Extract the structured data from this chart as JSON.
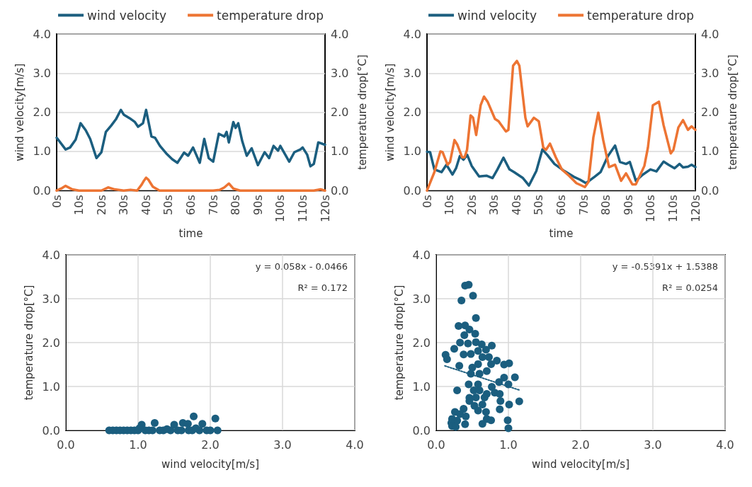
{
  "chart_data": [
    {
      "type": "line",
      "xlabel": "time",
      "ylabel": "wind velocity[m/s]",
      "y2label": "temperature drop[°C]",
      "legend": "top",
      "grid": "y",
      "marker": "none",
      "xlim": [
        0,
        120
      ],
      "xticks": [
        {
          "value": 0,
          "label": "0s"
        },
        {
          "value": 10,
          "label": "10s"
        },
        {
          "value": 20,
          "label": "20s"
        },
        {
          "value": 30,
          "label": "30s"
        },
        {
          "value": 40,
          "label": "40s"
        },
        {
          "value": 50,
          "label": "50s"
        },
        {
          "value": 60,
          "label": "60s"
        },
        {
          "value": 70,
          "label": "70s"
        },
        {
          "value": 80,
          "label": "80s"
        },
        {
          "value": 90,
          "label": "90s"
        },
        {
          "value": 100,
          "label": "100s"
        },
        {
          "value": 110,
          "label": "110s"
        },
        {
          "value": 120,
          "label": "120s"
        }
      ],
      "ylim": [
        0,
        4
      ],
      "yticks": [
        {
          "value": 0,
          "label": "0.0"
        },
        {
          "value": 1,
          "label": "1.0"
        },
        {
          "value": 2,
          "label": "2.0"
        },
        {
          "value": 3,
          "label": "3.0"
        },
        {
          "value": 4,
          "label": "4.0"
        }
      ],
      "y2lim": [
        0,
        4
      ],
      "y2ticks": [
        {
          "value": 0,
          "label": "0.0"
        },
        {
          "value": 1,
          "label": "1.0"
        },
        {
          "value": 2,
          "label": "2.0"
        },
        {
          "value": 3,
          "label": "3.0"
        },
        {
          "value": 4,
          "label": "4.0"
        }
      ],
      "series": [
        {
          "name": "wind velocity",
          "color": "#1b5e7f",
          "x": [
            0,
            4,
            6,
            8.5,
            10.7,
            13,
            15,
            17.8,
            20,
            22,
            24.4,
            26.5,
            28.7,
            30,
            32.6,
            35,
            36.4,
            38.6,
            40,
            42.4,
            44,
            46.2,
            49,
            51.7,
            54,
            57,
            58.8,
            61,
            64,
            66,
            68,
            70,
            72.5,
            75,
            76,
            77,
            79,
            80,
            81.2,
            83,
            85,
            87.2,
            90,
            93,
            95,
            97,
            99,
            100,
            104,
            106.3,
            109,
            110,
            112,
            113.5,
            115,
            117,
            120
          ],
          "values": [
            1.35,
            1.05,
            1.1,
            1.3,
            1.72,
            1.54,
            1.32,
            0.83,
            0.98,
            1.5,
            1.66,
            1.82,
            2.06,
            1.94,
            1.85,
            1.75,
            1.63,
            1.72,
            2.06,
            1.38,
            1.35,
            1.14,
            0.95,
            0.8,
            0.71,
            0.97,
            0.89,
            1.1,
            0.71,
            1.32,
            0.83,
            0.74,
            1.45,
            1.38,
            1.5,
            1.23,
            1.75,
            1.6,
            1.72,
            1.26,
            0.89,
            1.08,
            0.65,
            0.98,
            0.83,
            1.14,
            1.02,
            1.14,
            0.74,
            0.98,
            1.05,
            1.1,
            0.92,
            0.62,
            0.68,
            1.23,
            1.17
          ]
        },
        {
          "name": "temperature drop",
          "color": "#ed7433",
          "axis": "y2",
          "x": [
            0,
            2,
            4,
            7,
            10,
            20,
            23,
            26,
            30,
            33,
            36,
            38,
            39,
            40,
            41,
            43,
            46,
            60,
            70,
            73,
            75,
            77,
            79,
            82,
            100,
            115,
            118,
            120
          ],
          "values": [
            0,
            0.05,
            0.12,
            0.03,
            0,
            0,
            0.08,
            0.03,
            0,
            0.02,
            0,
            0.15,
            0.25,
            0.33,
            0.28,
            0.1,
            0,
            0,
            0,
            0.02,
            0.08,
            0.18,
            0.05,
            0,
            0,
            0,
            0.03,
            0
          ]
        }
      ]
    },
    {
      "type": "line",
      "xlabel": "time",
      "ylabel": "wind velocity[m/s]",
      "y2label": "temperature drop[°C]",
      "legend": "top",
      "grid": "y",
      "marker": "none",
      "xlim": [
        0,
        120
      ],
      "xticks": [
        {
          "value": 0,
          "label": "0s"
        },
        {
          "value": 10,
          "label": "10s"
        },
        {
          "value": 20,
          "label": "20s"
        },
        {
          "value": 30,
          "label": "30s"
        },
        {
          "value": 40,
          "label": "40s"
        },
        {
          "value": 50,
          "label": "50s"
        },
        {
          "value": 60,
          "label": "60s"
        },
        {
          "value": 70,
          "label": "70s"
        },
        {
          "value": 80,
          "label": "80s"
        },
        {
          "value": 90,
          "label": "90s"
        },
        {
          "value": 100,
          "label": "100s"
        },
        {
          "value": 110,
          "label": "110s"
        },
        {
          "value": 120,
          "label": "120s"
        }
      ],
      "ylim": [
        0,
        4
      ],
      "yticks": [
        {
          "value": 0,
          "label": "0.0"
        },
        {
          "value": 1,
          "label": "1.0"
        },
        {
          "value": 2,
          "label": "2.0"
        },
        {
          "value": 3,
          "label": "3.0"
        },
        {
          "value": 4,
          "label": "4.0"
        }
      ],
      "y2lim": [
        0,
        4
      ],
      "y2ticks": [
        {
          "value": 0,
          "label": "0.0"
        },
        {
          "value": 1,
          "label": "1.0"
        },
        {
          "value": 2,
          "label": "2.0"
        },
        {
          "value": 3,
          "label": "3.0"
        },
        {
          "value": 4,
          "label": "4.0"
        }
      ],
      "series": [
        {
          "name": "wind velocity",
          "color": "#1b5e7f",
          "x": [
            0,
            1.4,
            3.3,
            6.5,
            8.7,
            11.4,
            13,
            14.7,
            16.3,
            18,
            20,
            23.3,
            26.6,
            29.3,
            31.5,
            34.2,
            36.9,
            39,
            42.9,
            45.6,
            48.9,
            51.6,
            53.8,
            57,
            61.4,
            65.7,
            68.4,
            71.1,
            74.9,
            77.6,
            80.9,
            84.1,
            86.3,
            89,
            90.7,
            93.4,
            96.6,
            99.9,
            102.6,
            105.8,
            108,
            110.7,
            112.9,
            114.5,
            116.7,
            118.3,
            120
          ],
          "values": [
            0.99,
            0.98,
            0.54,
            0.47,
            0.66,
            0.41,
            0.57,
            0.88,
            0.79,
            0.91,
            0.63,
            0.36,
            0.38,
            0.32,
            0.54,
            0.84,
            0.54,
            0.47,
            0.32,
            0.13,
            0.5,
            1.05,
            0.91,
            0.68,
            0.5,
            0.35,
            0.28,
            0.19,
            0.35,
            0.47,
            0.88,
            1.15,
            0.73,
            0.68,
            0.73,
            0.25,
            0.41,
            0.54,
            0.49,
            0.74,
            0.66,
            0.57,
            0.68,
            0.59,
            0.61,
            0.66,
            0.6
          ]
        },
        {
          "name": "temperature drop",
          "color": "#ed7433",
          "axis": "y2",
          "x": [
            0,
            3.3,
            6,
            7,
            9.2,
            10.3,
            12.3,
            13.6,
            15.7,
            16.8,
            17.9,
            19.5,
            20.6,
            22,
            24,
            25.5,
            27.1,
            30.4,
            32,
            35.3,
            36.4,
            38.5,
            40.2,
            41.3,
            44,
            45,
            47.8,
            50,
            52,
            53.2,
            55,
            57.6,
            60.3,
            63.5,
            66.8,
            70.6,
            72.2,
            74.4,
            76.6,
            78.8,
            81.4,
            84.1,
            86.8,
            89,
            91.8,
            93.4,
            97.2,
            98.8,
            101,
            103.7,
            105.8,
            109,
            110.2,
            112.4,
            114.5,
            116.7,
            118.3,
            120
          ],
          "values": [
            0,
            0.47,
            1.0,
            0.98,
            0.66,
            0.73,
            1.29,
            1.17,
            0.85,
            0.85,
            1.04,
            1.92,
            1.86,
            1.42,
            2.18,
            2.4,
            2.27,
            1.83,
            1.77,
            1.51,
            1.55,
            3.19,
            3.31,
            3.19,
            1.86,
            1.64,
            1.86,
            1.77,
            1.1,
            1.04,
            1.2,
            0.85,
            0.54,
            0.38,
            0.19,
            0.09,
            0.22,
            1.36,
            1.99,
            1.29,
            0.6,
            0.66,
            0.25,
            0.44,
            0.16,
            0.16,
            0.63,
            1.1,
            2.18,
            2.27,
            1.67,
            0.95,
            1.04,
            1.61,
            1.8,
            1.55,
            1.64,
            1.55
          ]
        }
      ]
    },
    {
      "type": "scatter",
      "xlabel": "wind velocity[m/s]",
      "ylabel": "temperature drop[°C]",
      "grid": true,
      "marker": "circle",
      "annotations": [
        "y = 0.058x - 0.0466",
        "R² = 0.172"
      ],
      "xlim": [
        0,
        4
      ],
      "xticks": [
        {
          "value": 0,
          "label": "0.0"
        },
        {
          "value": 1,
          "label": "1.0"
        },
        {
          "value": 2,
          "label": "2.0"
        },
        {
          "value": 3,
          "label": "3.0"
        },
        {
          "value": 4,
          "label": "4.0"
        }
      ],
      "ylim": [
        0,
        4
      ],
      "yticks": [
        {
          "value": 0,
          "label": "0.0"
        },
        {
          "value": 1,
          "label": "1.0"
        },
        {
          "value": 2,
          "label": "2.0"
        },
        {
          "value": 3,
          "label": "3.0"
        },
        {
          "value": 4,
          "label": "4.0"
        }
      ],
      "series": [
        {
          "color": "#1b5e7f",
          "x": [
            0.6,
            0.65,
            0.7,
            0.75,
            0.8,
            0.85,
            0.9,
            0.95,
            1.0,
            1.1,
            1.15,
            1.2,
            1.3,
            1.35,
            1.45,
            1.55,
            1.6,
            1.7,
            1.75,
            1.85,
            1.95,
            2.0,
            2.1,
            1.05,
            1.23,
            1.38,
            1.5,
            1.62,
            1.69,
            1.77,
            1.89,
            2.07,
            1.02,
            1.4,
            1.8
          ],
          "values": [
            0,
            0,
            0,
            0,
            0,
            0,
            0,
            0,
            0,
            0,
            0,
            0,
            0,
            0,
            0,
            0,
            0,
            0,
            0,
            0,
            0,
            0,
            0,
            0.13,
            0.17,
            null,
            0.13,
            0.17,
            0.15,
            0.32,
            0.15,
            0.27,
            0.05,
            0.03,
            0.05
          ]
        }
      ]
    },
    {
      "type": "scatter",
      "xlabel": "wind velocity[m/s]",
      "ylabel": "temperature drop[°C]",
      "grid": true,
      "marker": "circle",
      "annotations": [
        "y = -0.5391x + 1.5388",
        "R² = 0.0254"
      ],
      "xlim": [
        0,
        4
      ],
      "xticks": [
        {
          "value": 0,
          "label": "0.0"
        },
        {
          "value": 1,
          "label": "1.0"
        },
        {
          "value": 2,
          "label": "2.0"
        },
        {
          "value": 3,
          "label": "3.0"
        },
        {
          "value": 4,
          "label": "4.0"
        }
      ],
      "ylim": [
        0,
        4
      ],
      "yticks": [
        {
          "value": 0,
          "label": "0.0"
        },
        {
          "value": 1,
          "label": "1.0"
        },
        {
          "value": 2,
          "label": "2.0"
        },
        {
          "value": 3,
          "label": "3.0"
        },
        {
          "value": 4,
          "label": "4.0"
        }
      ],
      "series": [
        {
          "color": "#1b5e7f",
          "x": [
            0.4,
            0.45,
            0.51,
            0.35,
            0.55,
            0.31,
            0.4,
            0.46,
            0.39,
            0.54,
            0.33,
            0.44,
            0.55,
            0.63,
            0.77,
            0.25,
            0.38,
            0.48,
            0.58,
            0.69,
            0.13,
            0.15,
            0.64,
            0.73,
            0.84,
            0.94,
            1.01,
            0.32,
            0.5,
            0.58,
            0.76,
            0.48,
            0.6,
            0.7,
            0.94,
            1.09,
            0.87,
            1.0,
            0.45,
            0.58,
            0.77,
            0.29,
            0.52,
            0.6,
            0.7,
            0.81,
            0.88,
            0.46,
            0.55,
            0.67,
            0.89,
            1.01,
            1.15,
            0.46,
            0.64,
            0.53,
            0.38,
            0.88,
            0.26,
            0.33,
            0.58,
            0.69,
            0.7,
            0.76,
            0.41,
            0.22,
            0.29,
            0.21,
            0.4,
            0.64,
            0.99,
            1.0,
            0.22,
            0.27
          ],
          "values": [
            3.3,
            3.32,
            3.07,
            2.96,
            2.56,
            2.38,
            2.39,
            2.3,
            2.17,
            2.2,
            2.0,
            1.98,
            2.01,
            1.96,
            1.93,
            1.86,
            1.73,
            1.74,
            1.81,
            1.84,
            1.72,
            1.62,
            1.67,
            1.67,
            1.59,
            1.5,
            1.53,
            1.47,
            1.43,
            1.51,
            1.51,
            1.29,
            1.29,
            1.35,
            1.2,
            1.21,
            1.1,
            1.05,
            1.05,
            1.05,
            0.99,
            0.91,
            0.91,
            0.91,
            0.83,
            0.86,
            0.83,
            0.74,
            0.75,
            0.75,
            0.67,
            0.59,
            0.66,
            0.67,
            0.59,
            0.56,
            0.49,
            0.48,
            0.42,
            0.37,
            0.45,
            0.42,
            0.26,
            0.23,
            0.32,
            0.26,
            0.22,
            0.17,
            0.14,
            0.15,
            0.23,
            0.05,
            0.1,
            0.08
          ]
        },
        {
          "type": "line",
          "color": "#1b5e7f",
          "line_style": "dotted",
          "marker": "none",
          "x": [
            0.12,
            1.15
          ],
          "values": [
            1.47,
            0.92
          ]
        }
      ]
    }
  ]
}
